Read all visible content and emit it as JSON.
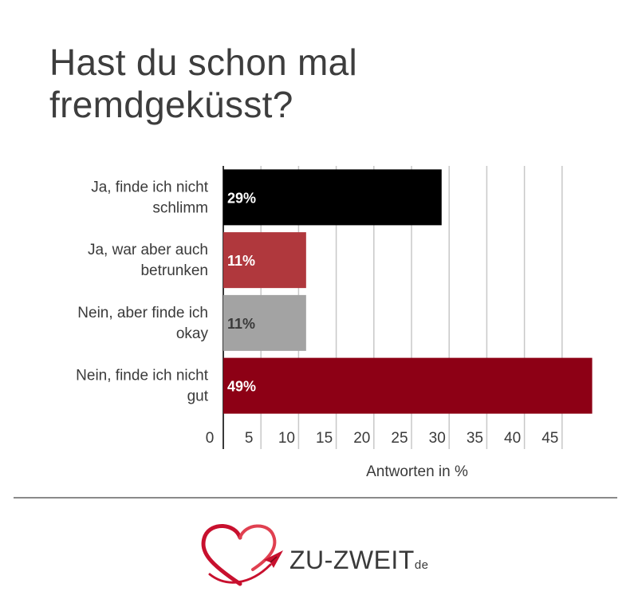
{
  "title_lines": [
    "Hast du schon mal",
    "fremdgeküsst?"
  ],
  "chart_data": {
    "type": "bar",
    "orientation": "horizontal",
    "categories": [
      [
        "Ja, finde ich nicht",
        "schlimm"
      ],
      [
        "Ja, war aber auch",
        "betrunken"
      ],
      [
        "Nein, aber finde ich",
        "okay"
      ],
      [
        "Nein, finde ich nicht",
        "gut"
      ]
    ],
    "values": [
      29,
      11,
      11,
      49
    ],
    "value_labels": [
      "29%",
      "11%",
      "11%",
      "49%"
    ],
    "bar_colors": [
      "#000000",
      "#b0383d",
      "#a3a3a3",
      "#8d0015"
    ],
    "label_colors": [
      "#ffffff",
      "#ffffff",
      "#3a3a3a",
      "#ffffff"
    ],
    "xlabel": "Antworten in %",
    "xticks": [
      0,
      5,
      10,
      15,
      20,
      25,
      30,
      35,
      40,
      45
    ],
    "xlim": [
      0,
      50
    ],
    "grid": true
  },
  "logo": {
    "name": "ZU-ZWEIT",
    "tld": "de",
    "accent": "#c8102e"
  }
}
